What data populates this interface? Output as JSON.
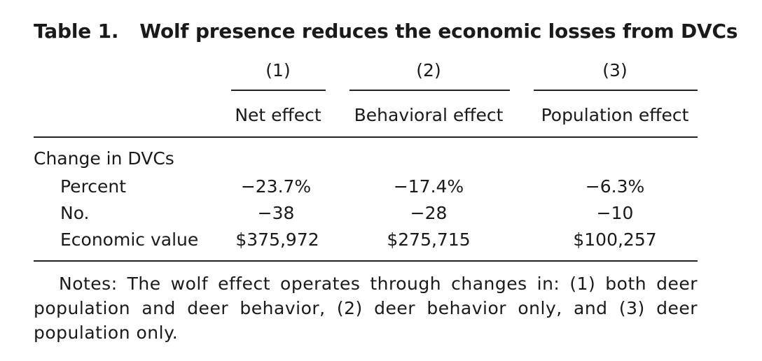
{
  "table": {
    "label": "Table 1.",
    "title": "Wolf presence reduces the economic losses from DVCs",
    "column_numbers": [
      "(1)",
      "(2)",
      "(3)"
    ],
    "column_headers": [
      "Net effect",
      "Behavioral effect",
      "Population effect"
    ],
    "group_label": "Change in DVCs",
    "rows": [
      {
        "label": "Percent",
        "values": [
          "−23.7%",
          "−17.4%",
          "−6.3%"
        ]
      },
      {
        "label": "No.",
        "values": [
          "−38",
          "−28",
          "−10"
        ]
      },
      {
        "label": "Economic value",
        "values": [
          "$375,972",
          "$275,715",
          "$100,257"
        ]
      }
    ],
    "notes": "Notes: The wolf effect operates through changes in: (1) both deer population and deer behavior, (2) deer behavior only, and (3) deer population only."
  }
}
